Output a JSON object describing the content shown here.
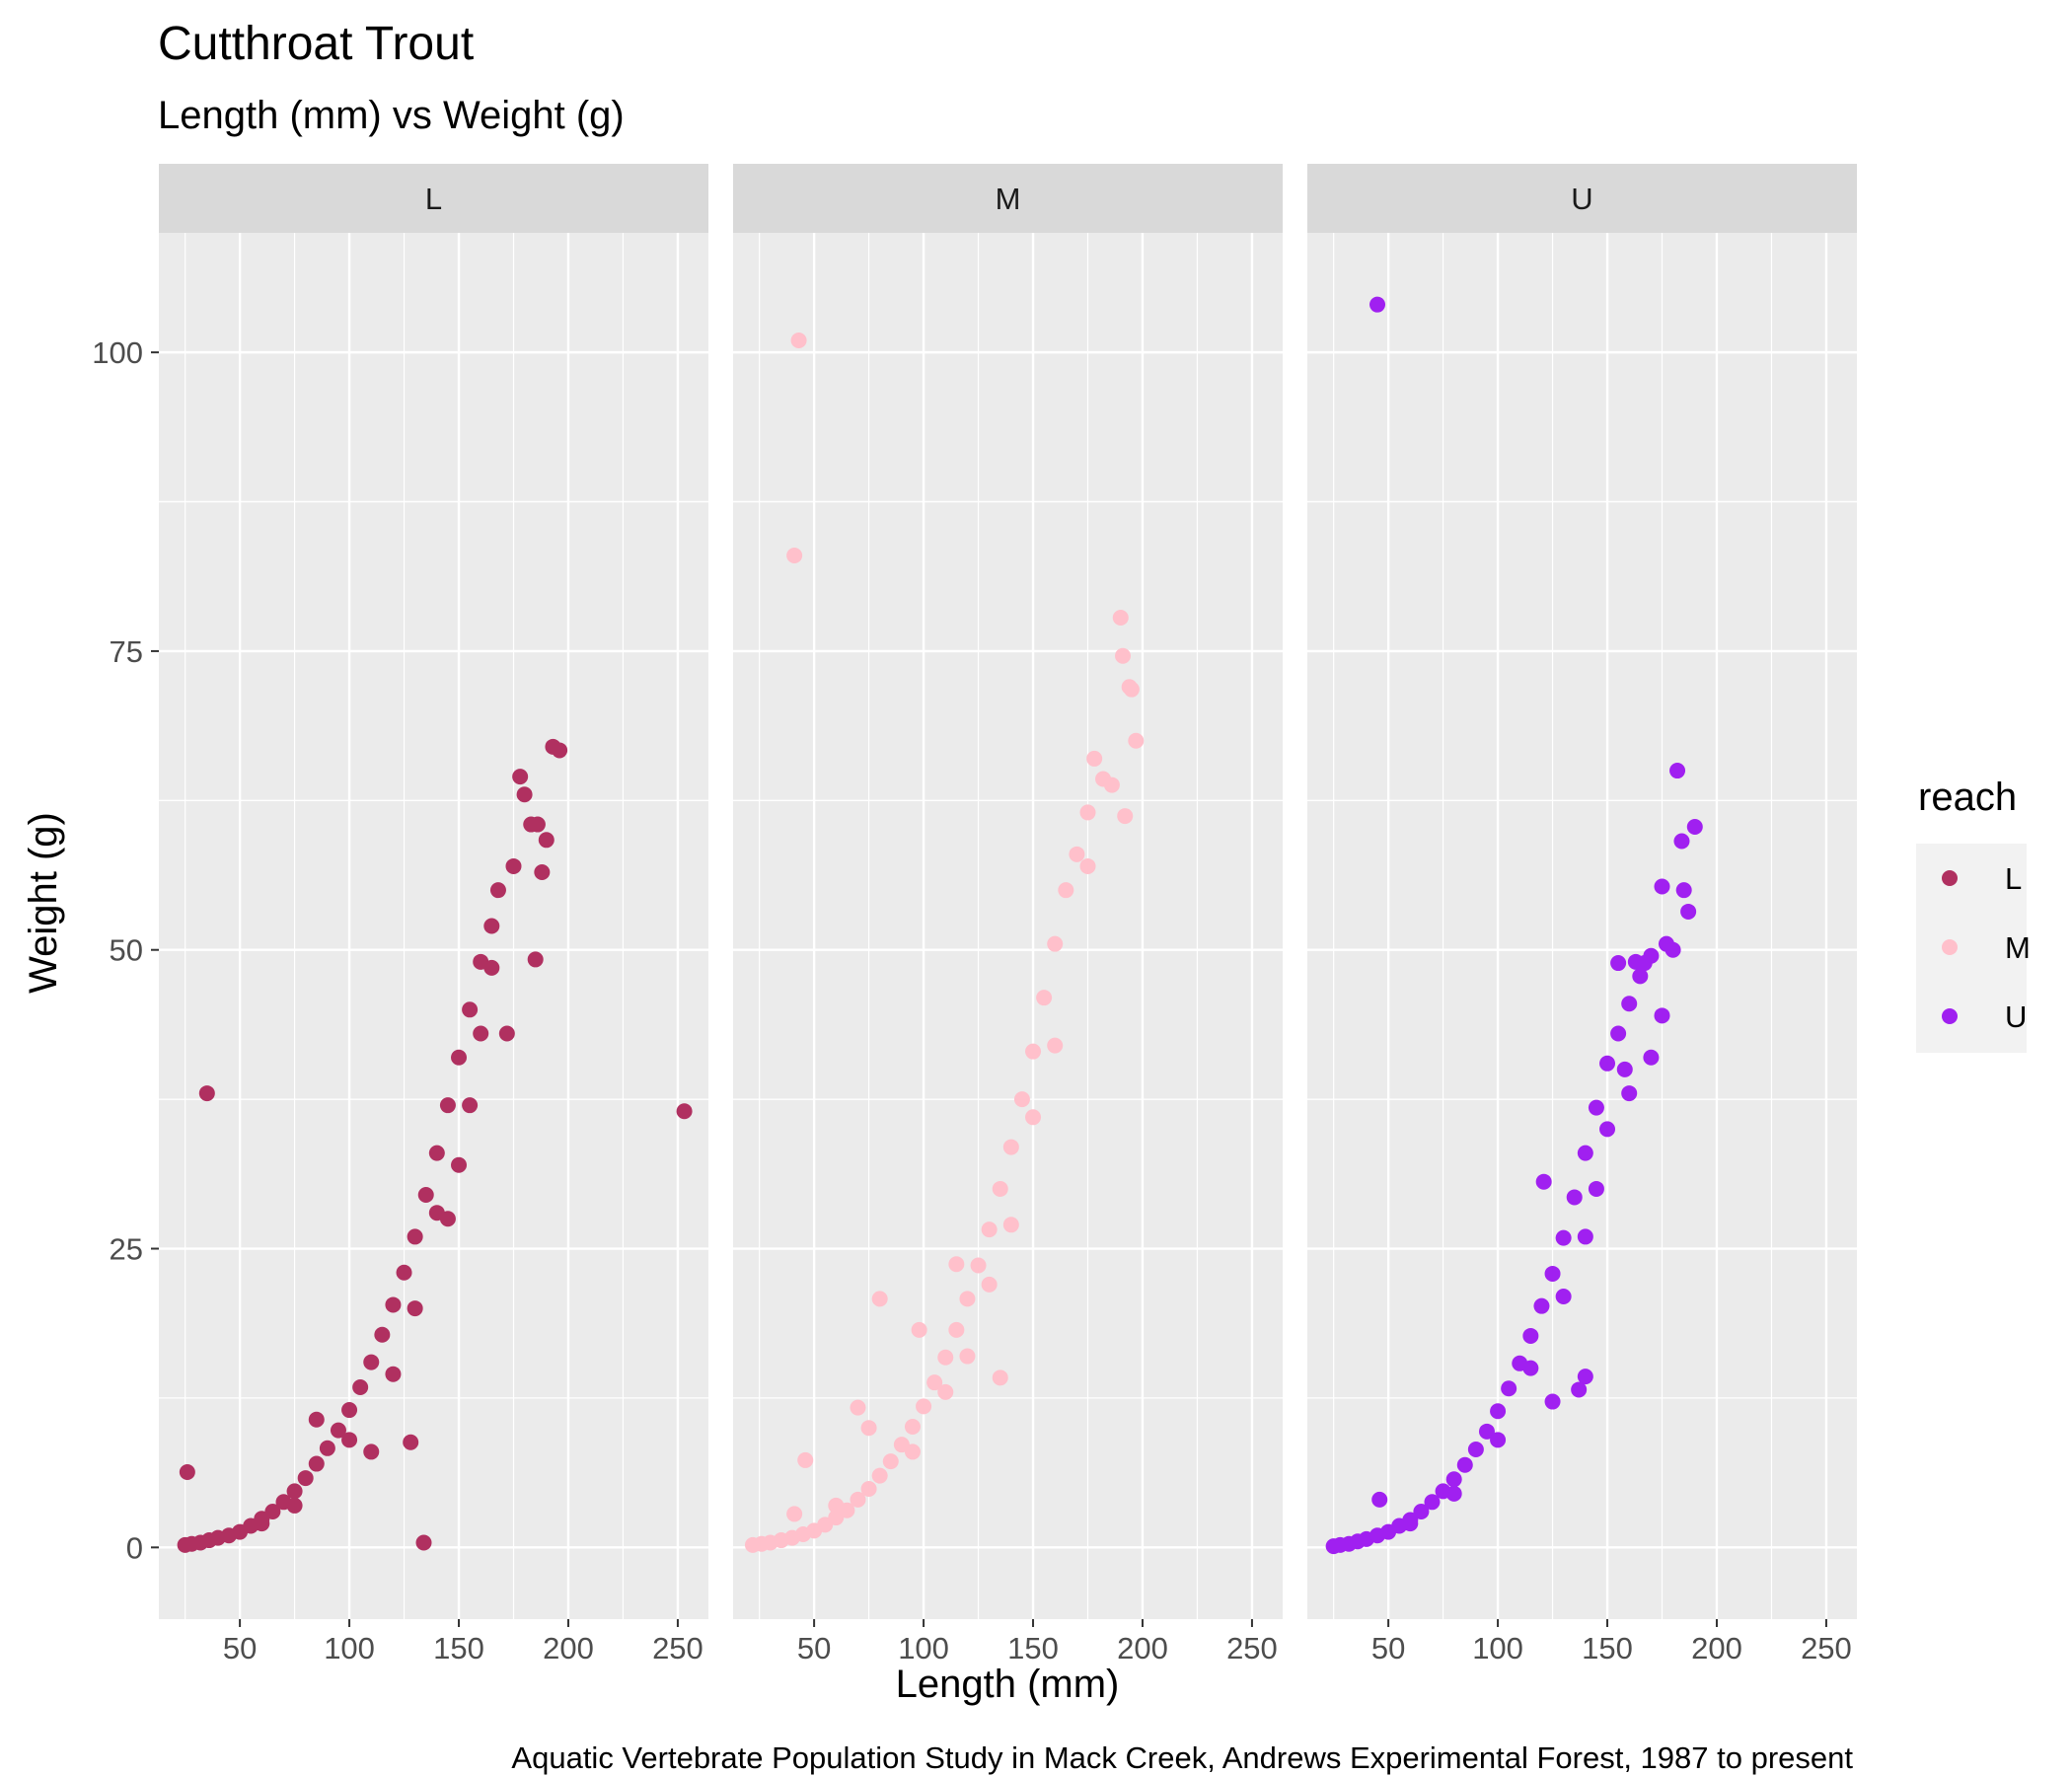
{
  "chart_data": {
    "type": "scatter",
    "title": "Cutthroat Trout",
    "subtitle": "Length (mm) vs Weight (g)",
    "xlabel": "Length (mm)",
    "ylabel": "Weight (g)",
    "caption": "Aquatic Vertebrate Population Study in Mack Creek, Andrews Experimental Forest, 1987 to present",
    "xlim": [
      13,
      264
    ],
    "ylim": [
      -6,
      110
    ],
    "x_ticks": [
      50,
      100,
      150,
      200,
      250
    ],
    "x_tick_labels": [
      "50",
      "100",
      "150",
      "200",
      "250"
    ],
    "y_ticks": [
      0,
      25,
      50,
      75,
      100
    ],
    "y_tick_labels": [
      "0",
      "25",
      "50",
      "75",
      "100"
    ],
    "grid": true,
    "facet_by": "reach",
    "legend": {
      "title": "reach",
      "position": "right"
    },
    "series": [
      {
        "name": "L",
        "color": "#B03060",
        "points": [
          [
            25,
            0.2
          ],
          [
            28,
            0.3
          ],
          [
            32,
            0.4
          ],
          [
            36,
            0.6
          ],
          [
            40,
            0.8
          ],
          [
            45,
            1.0
          ],
          [
            50,
            1.3
          ],
          [
            55,
            1.8
          ],
          [
            60,
            2.4
          ],
          [
            65,
            3.0
          ],
          [
            70,
            3.8
          ],
          [
            75,
            4.7
          ],
          [
            80,
            5.8
          ],
          [
            85,
            7.0
          ],
          [
            90,
            8.3
          ],
          [
            95,
            9.8
          ],
          [
            100,
            11.5
          ],
          [
            105,
            13.4
          ],
          [
            110,
            15.5
          ],
          [
            115,
            17.8
          ],
          [
            120,
            20.3
          ],
          [
            125,
            23.0
          ],
          [
            130,
            26.0
          ],
          [
            135,
            29.5
          ],
          [
            140,
            33.0
          ],
          [
            145,
            37.0
          ],
          [
            150,
            41.0
          ],
          [
            155,
            45.0
          ],
          [
            160,
            49.0
          ],
          [
            165,
            52.0
          ],
          [
            168,
            55.0
          ],
          [
            175,
            57.0
          ],
          [
            178,
            64.5
          ],
          [
            180,
            63.0
          ],
          [
            183,
            60.5
          ],
          [
            186,
            60.5
          ],
          [
            188,
            56.5
          ],
          [
            190,
            59.2
          ],
          [
            193,
            67.0
          ],
          [
            196,
            66.7
          ],
          [
            185,
            49.2
          ],
          [
            172,
            43.0
          ],
          [
            35,
            38.0
          ],
          [
            253,
            36.5
          ],
          [
            26,
            6.3
          ],
          [
            128,
            8.8
          ],
          [
            134,
            0.4
          ],
          [
            85,
            10.7
          ],
          [
            110,
            8.0
          ],
          [
            145,
            27.5
          ],
          [
            155,
            37.0
          ],
          [
            120,
            14.5
          ],
          [
            160,
            43.0
          ],
          [
            165,
            48.5
          ],
          [
            100,
            9.0
          ],
          [
            60,
            2.0
          ],
          [
            75,
            3.5
          ],
          [
            130,
            20.0
          ],
          [
            140,
            28.0
          ],
          [
            150,
            32.0
          ]
        ]
      },
      {
        "name": "M",
        "color": "#FFC0CB",
        "points": [
          [
            22,
            0.2
          ],
          [
            26,
            0.3
          ],
          [
            30,
            0.4
          ],
          [
            35,
            0.6
          ],
          [
            40,
            0.8
          ],
          [
            45,
            1.1
          ],
          [
            50,
            1.4
          ],
          [
            55,
            1.9
          ],
          [
            60,
            2.5
          ],
          [
            65,
            3.1
          ],
          [
            70,
            4.0
          ],
          [
            75,
            4.9
          ],
          [
            80,
            6.0
          ],
          [
            85,
            7.2
          ],
          [
            90,
            8.6
          ],
          [
            95,
            10.1
          ],
          [
            100,
            11.8
          ],
          [
            105,
            13.8
          ],
          [
            110,
            15.9
          ],
          [
            115,
            18.2
          ],
          [
            120,
            20.8
          ],
          [
            125,
            23.6
          ],
          [
            130,
            26.6
          ],
          [
            135,
            30.0
          ],
          [
            140,
            33.5
          ],
          [
            145,
            37.5
          ],
          [
            150,
            41.5
          ],
          [
            155,
            46.0
          ],
          [
            160,
            50.5
          ],
          [
            165,
            55.0
          ],
          [
            170,
            58.0
          ],
          [
            175,
            61.5
          ],
          [
            178,
            66.0
          ],
          [
            182,
            64.3
          ],
          [
            186,
            63.8
          ],
          [
            190,
            77.8
          ],
          [
            191,
            74.6
          ],
          [
            194,
            72.0
          ],
          [
            195,
            71.8
          ],
          [
            197,
            67.5
          ],
          [
            192,
            61.2
          ],
          [
            175,
            57.0
          ],
          [
            43,
            101.0
          ],
          [
            41,
            83.0
          ],
          [
            80,
            20.8
          ],
          [
            98,
            18.2
          ],
          [
            115,
            23.7
          ],
          [
            135,
            14.2
          ],
          [
            46,
            7.3
          ],
          [
            70,
            11.7
          ],
          [
            75,
            10.0
          ],
          [
            41,
            2.8
          ],
          [
            60,
            3.5
          ],
          [
            120,
            16.0
          ],
          [
            140,
            27.0
          ],
          [
            150,
            36.0
          ],
          [
            160,
            42.0
          ],
          [
            130,
            22.0
          ],
          [
            110,
            13.0
          ],
          [
            95,
            8.0
          ]
        ]
      },
      {
        "name": "U",
        "color": "#A020F0",
        "points": [
          [
            25,
            0.1
          ],
          [
            28,
            0.2
          ],
          [
            32,
            0.3
          ],
          [
            36,
            0.5
          ],
          [
            40,
            0.7
          ],
          [
            45,
            1.0
          ],
          [
            50,
            1.3
          ],
          [
            55,
            1.8
          ],
          [
            60,
            2.3
          ],
          [
            65,
            3.0
          ],
          [
            70,
            3.8
          ],
          [
            75,
            4.7
          ],
          [
            80,
            5.7
          ],
          [
            85,
            6.9
          ],
          [
            90,
            8.2
          ],
          [
            95,
            9.7
          ],
          [
            100,
            11.4
          ],
          [
            105,
            13.3
          ],
          [
            110,
            15.4
          ],
          [
            115,
            17.7
          ],
          [
            120,
            20.2
          ],
          [
            125,
            22.9
          ],
          [
            130,
            25.9
          ],
          [
            135,
            29.3
          ],
          [
            140,
            33.0
          ],
          [
            145,
            36.8
          ],
          [
            150,
            40.5
          ],
          [
            155,
            43.0
          ],
          [
            160,
            45.5
          ],
          [
            165,
            47.8
          ],
          [
            170,
            49.5
          ],
          [
            175,
            55.3
          ],
          [
            177,
            50.5
          ],
          [
            180,
            50.0
          ],
          [
            182,
            65.0
          ],
          [
            184,
            59.1
          ],
          [
            185,
            55.0
          ],
          [
            187,
            53.2
          ],
          [
            190,
            60.3
          ],
          [
            175,
            44.5
          ],
          [
            163,
            49.0
          ],
          [
            167,
            48.9
          ],
          [
            155,
            48.9
          ],
          [
            158,
            40.0
          ],
          [
            45,
            104.0
          ],
          [
            46,
            4.0
          ],
          [
            121,
            30.6
          ],
          [
            125,
            12.2
          ],
          [
            137,
            13.2
          ],
          [
            140,
            14.3
          ],
          [
            60,
            2.0
          ],
          [
            80,
            4.5
          ],
          [
            100,
            9.0
          ],
          [
            115,
            15.0
          ],
          [
            130,
            21.0
          ],
          [
            145,
            30.0
          ],
          [
            150,
            35.0
          ],
          [
            160,
            38.0
          ],
          [
            170,
            41.0
          ],
          [
            140,
            26.0
          ]
        ]
      }
    ]
  }
}
